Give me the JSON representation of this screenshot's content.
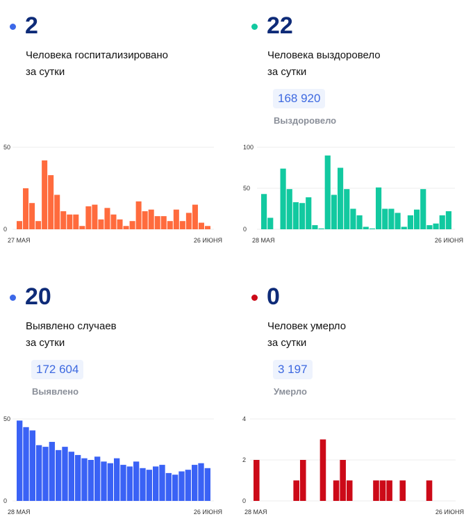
{
  "cards": [
    {
      "value": "2",
      "label_line1": "Человека госпитализировано",
      "label_line2": "за сутки",
      "dot_color": "#3c68e8"
    },
    {
      "value": "22",
      "label_line1": "Человека выздоровело",
      "label_line2": "за сутки",
      "total": "168 920",
      "total_label": "Выздоровело",
      "dot_color": "#12c9a0"
    },
    {
      "value": "20",
      "label_line1": "Выявлено случаев",
      "label_line2": "за сутки",
      "total": "172 604",
      "total_label": "Выявлено",
      "dot_color": "#3c68e8"
    },
    {
      "value": "0",
      "label_line1": "Человек умерло",
      "label_line2": "за сутки",
      "total": "3 197",
      "total_label": "Умерло",
      "dot_color": "#cc0a18"
    }
  ],
  "chart_data": [
    {
      "type": "bar",
      "color": "#ff6b3d",
      "ylim": [
        0,
        50
      ],
      "yticks": [
        "0",
        "50"
      ],
      "x_start_label": "27 МАЯ",
      "x_end_label": "26 ИЮНЯ",
      "values": [
        5,
        25,
        16,
        5,
        42,
        33,
        21,
        11,
        9,
        9,
        2,
        14,
        15,
        6,
        13,
        9,
        6,
        2,
        5,
        17,
        11,
        12,
        8,
        8,
        5,
        12,
        5,
        10,
        15,
        4,
        2
      ]
    },
    {
      "type": "bar",
      "color": "#12c9a0",
      "ylim": [
        0,
        100
      ],
      "yticks": [
        "0",
        "50",
        "100"
      ],
      "x_start_label": "28 МАЯ",
      "x_end_label": "26 ИЮНЯ",
      "values": [
        43,
        14,
        0,
        74,
        49,
        33,
        32,
        39,
        5,
        1,
        90,
        42,
        75,
        49,
        25,
        17,
        3,
        1,
        51,
        25,
        25,
        20,
        3,
        17,
        24,
        49,
        5,
        7,
        17,
        22
      ]
    },
    {
      "type": "bar",
      "color": "#3a62f5",
      "ylim": [
        0,
        50
      ],
      "yticks": [
        "0",
        "50"
      ],
      "x_start_label": "28 МАЯ",
      "x_end_label": "26 ИЮНЯ",
      "values": [
        49,
        45,
        43,
        34,
        33,
        36,
        31,
        33,
        30,
        28,
        26,
        25,
        27,
        24,
        23,
        26,
        22,
        21,
        24,
        20,
        19,
        21,
        22,
        17,
        16,
        18,
        19,
        22,
        23,
        20
      ]
    },
    {
      "type": "bar",
      "color": "#cc0a18",
      "ylim": [
        0,
        4
      ],
      "yticks": [
        "0",
        "2",
        "4"
      ],
      "x_start_label": "28 МАЯ",
      "x_end_label": "26 ИЮНЯ",
      "values": [
        2,
        0,
        0,
        0,
        0,
        0,
        1,
        2,
        0,
        0,
        3,
        0,
        1,
        2,
        1,
        0,
        0,
        0,
        1,
        1,
        1,
        0,
        1,
        0,
        0,
        0,
        1,
        0,
        0,
        0
      ]
    }
  ]
}
